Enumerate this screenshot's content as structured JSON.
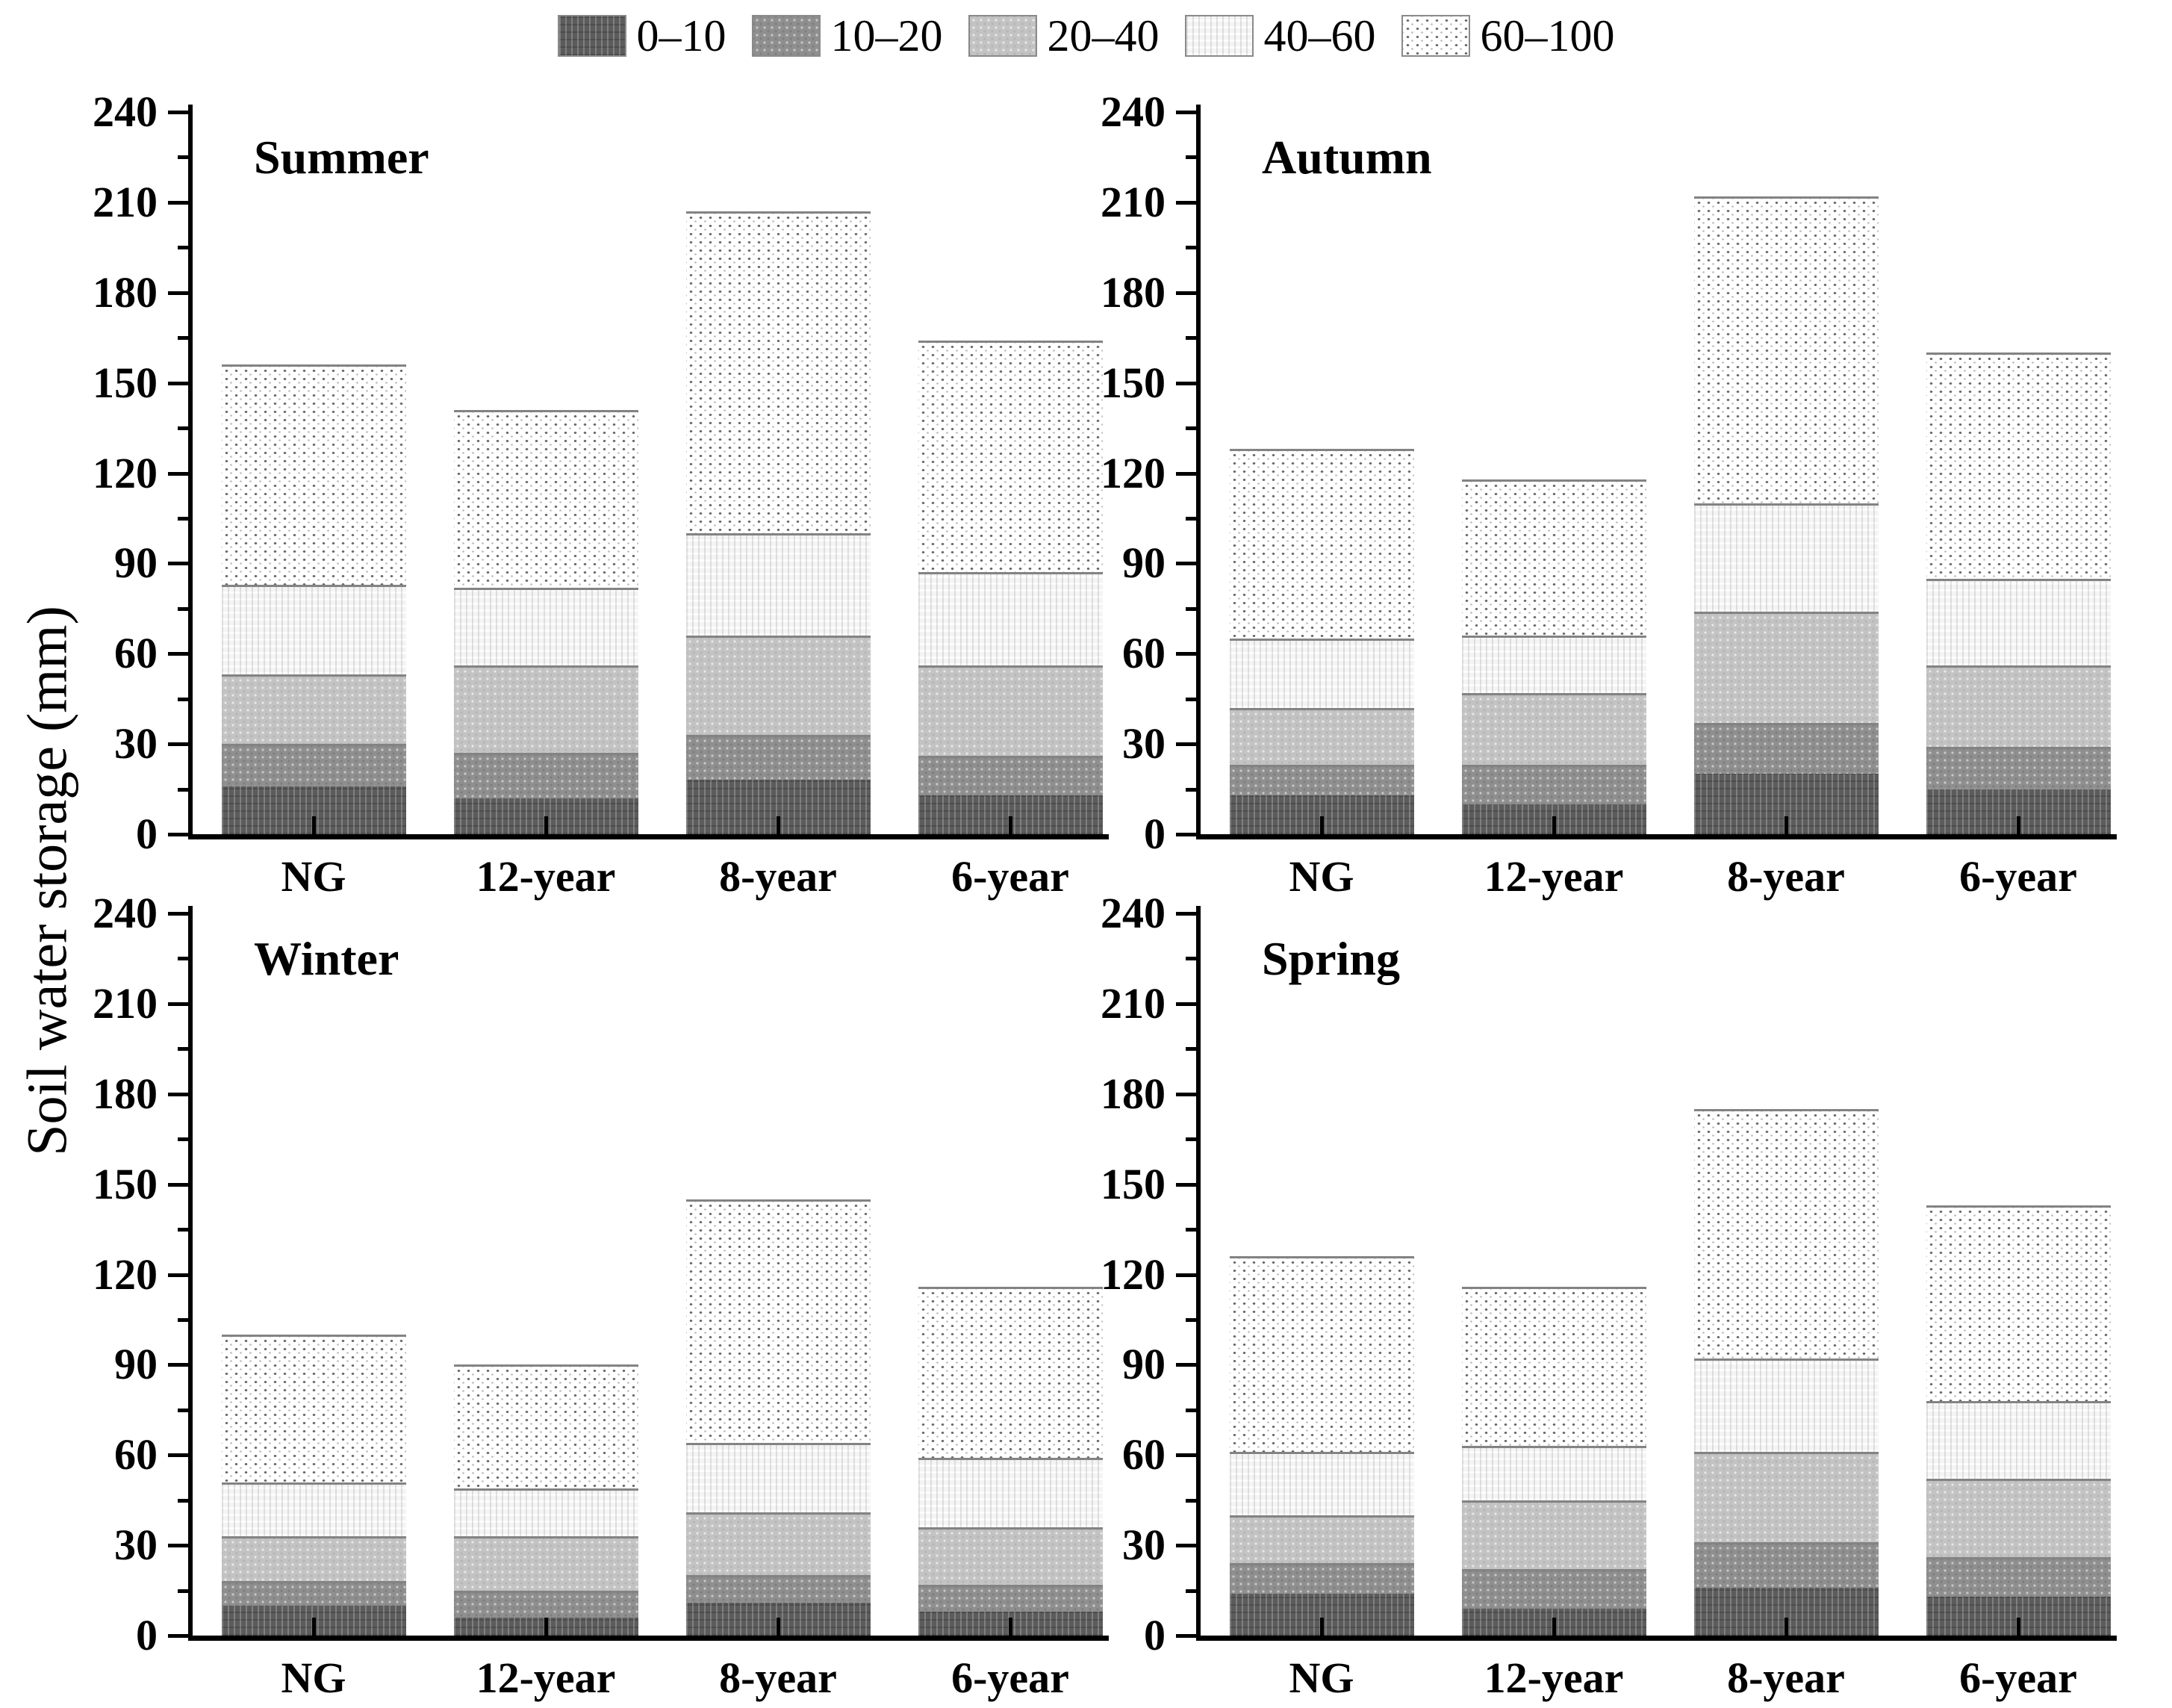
{
  "chart_data": {
    "type": "bar",
    "stacked": true,
    "ylabel": "Soil water storage (mm)",
    "ylim": [
      0,
      240
    ],
    "ytick_step": 30,
    "yticks": [
      "0",
      "30",
      "60",
      "90",
      "120",
      "150",
      "180",
      "210",
      "240"
    ],
    "grid": false,
    "legend_position": "top-center",
    "depth_layers": [
      "0–10",
      "10–20",
      "20–40",
      "40–60",
      "60–100"
    ],
    "categories": [
      "NG",
      "12-year",
      "8-year",
      "6-year"
    ],
    "panels": [
      {
        "title": "Summer",
        "series": [
          {
            "name": "0–10",
            "values": [
              16,
              12,
              18,
              13
            ]
          },
          {
            "name": "10–20",
            "values": [
              14,
              15,
              15,
              13
            ]
          },
          {
            "name": "20–40",
            "values": [
              23,
              29,
              33,
              30
            ]
          },
          {
            "name": "40–60",
            "values": [
              30,
              26,
              34,
              31
            ]
          },
          {
            "name": "60–100",
            "values": [
              73,
              59,
              107,
              77
            ]
          }
        ],
        "totals": [
          156,
          141,
          207,
          164
        ]
      },
      {
        "title": "Autumn",
        "series": [
          {
            "name": "0–10",
            "values": [
              13,
              10,
              20,
              15
            ]
          },
          {
            "name": "10–20",
            "values": [
              10,
              13,
              17,
              14
            ]
          },
          {
            "name": "20–40",
            "values": [
              19,
              24,
              37,
              27
            ]
          },
          {
            "name": "40–60",
            "values": [
              23,
              19,
              36,
              29
            ]
          },
          {
            "name": "60–100",
            "values": [
              63,
              52,
              102,
              75
            ]
          }
        ],
        "totals": [
          128,
          118,
          212,
          160
        ]
      },
      {
        "title": "Winter",
        "series": [
          {
            "name": "0–10",
            "values": [
              10,
              6,
              11,
              8
            ]
          },
          {
            "name": "10–20",
            "values": [
              8,
              9,
              9,
              9
            ]
          },
          {
            "name": "20–40",
            "values": [
              15,
              18,
              21,
              19
            ]
          },
          {
            "name": "40–60",
            "values": [
              18,
              16,
              23,
              23
            ]
          },
          {
            "name": "60–100",
            "values": [
              49,
              41,
              81,
              57
            ]
          }
        ],
        "totals": [
          100,
          90,
          145,
          116
        ]
      },
      {
        "title": "Spring",
        "series": [
          {
            "name": "0–10",
            "values": [
              14,
              9,
              16,
              13
            ]
          },
          {
            "name": "10–20",
            "values": [
              10,
              13,
              15,
              13
            ]
          },
          {
            "name": "20–40",
            "values": [
              16,
              23,
              30,
              26
            ]
          },
          {
            "name": "40–60",
            "values": [
              21,
              18,
              31,
              26
            ]
          },
          {
            "name": "60–100",
            "values": [
              65,
              53,
              83,
              65
            ]
          }
        ],
        "totals": [
          126,
          116,
          175,
          143
        ]
      }
    ],
    "colors": {
      "0-10": "#5c5c5c",
      "10-20": "#8f8f8f",
      "20-40": "#c3c3c3",
      "40-60": "#f4f4f4",
      "60-100": "#ffffff",
      "axis": "#000000"
    }
  }
}
